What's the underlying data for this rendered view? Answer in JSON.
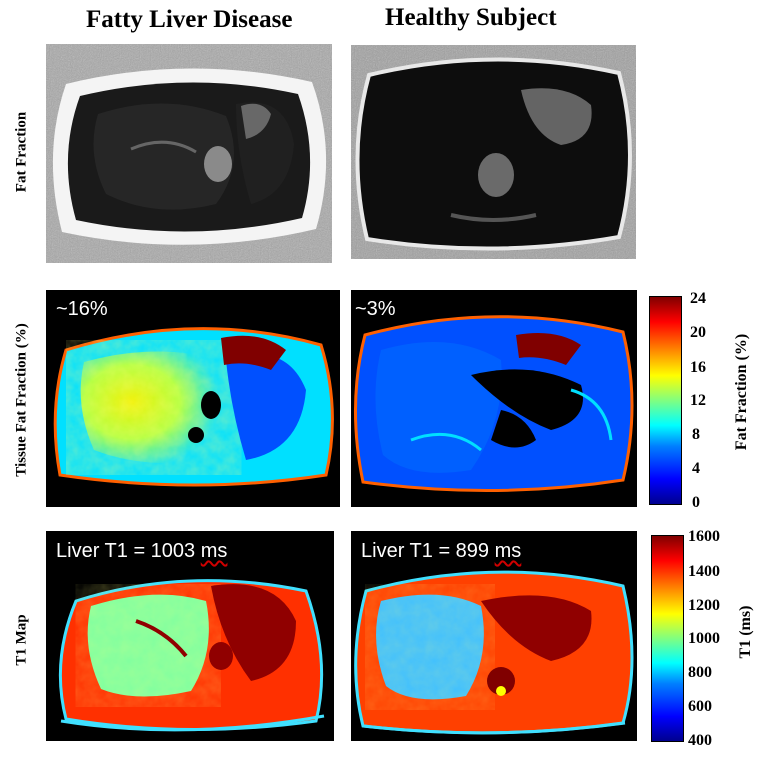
{
  "columns": [
    "Fatty Liver Disease",
    "Healthy Subject"
  ],
  "rows": [
    "Fat Fraction",
    "Tissue Fat Fraction (%)",
    "T1 Map"
  ],
  "overlays": {
    "fatty_fraction": "~16%",
    "healthy_fraction": "~3%",
    "fatty_t1_prefix": "Liver T1 = 1003 ",
    "healthy_t1_prefix": "Liver T1 = 899 ",
    "unit": "ms"
  },
  "fat_colorbar": {
    "title": "Fat Fraction (%)",
    "ticks": [
      "24",
      "20",
      "16",
      "12",
      "8",
      "4",
      "0"
    ],
    "range": [
      0,
      24
    ]
  },
  "t1_colorbar": {
    "title": "T1 (ms)",
    "ticks": [
      "1600",
      "1400",
      "1200",
      "1000",
      "800",
      "600",
      "400"
    ],
    "range": [
      400,
      1600
    ]
  },
  "colors": {
    "jet_dark_blue": "#00008f",
    "jet_blue": "#0050ff",
    "jet_cyan": "#00e0ff",
    "jet_yellow": "#f0f000",
    "jet_orange": "#ff6000",
    "jet_dark_red": "#800000"
  }
}
